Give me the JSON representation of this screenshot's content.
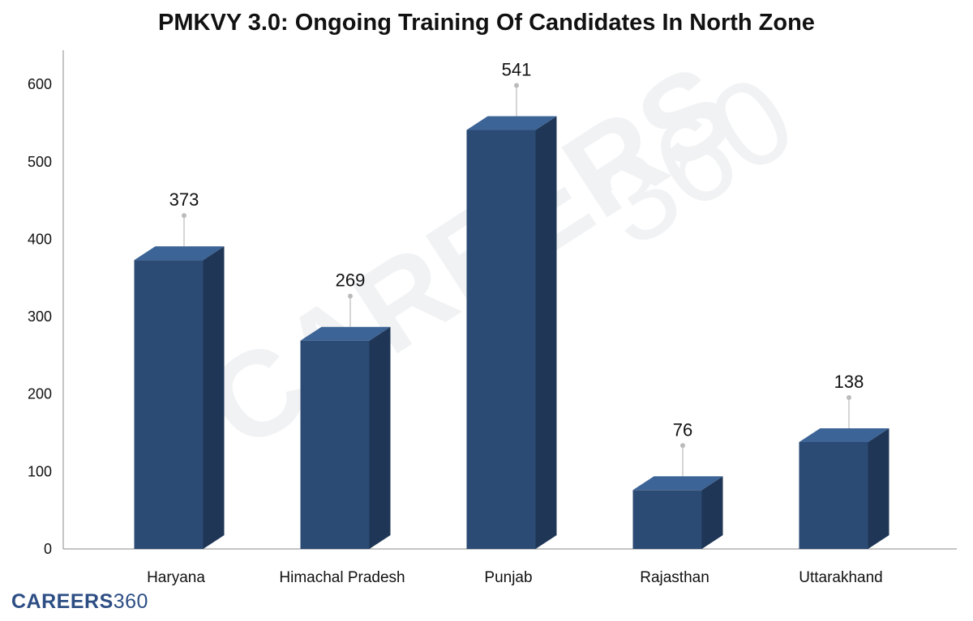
{
  "chart_data": {
    "type": "bar",
    "title": "PMKVY 3.0: Ongoing Training Of Candidates In North Zone",
    "categories": [
      "Haryana",
      "Himachal Pradesh",
      "Punjab",
      "Rajasthan",
      "Uttarakhand"
    ],
    "values": [
      373,
      269,
      541,
      76,
      138
    ],
    "data_labels": [
      "373",
      "269",
      "541",
      "76",
      "138"
    ],
    "xlabel": "",
    "ylabel": "",
    "ylim": [
      0,
      640
    ],
    "yticks": [
      0,
      100,
      200,
      300,
      400,
      500,
      600
    ],
    "grid": false,
    "legend": "none",
    "style": "3d-column",
    "colors": {
      "front": "#2b4a74",
      "top": "#3d6496",
      "side": "#1f3656",
      "axis": "#888888",
      "leader": "#bbbbbb"
    }
  },
  "brand": {
    "logo_bold": "CAREERS",
    "logo_light": "360",
    "watermark_bold": "CAREERS",
    "watermark_light": "360",
    "color": "#2d4e84"
  }
}
